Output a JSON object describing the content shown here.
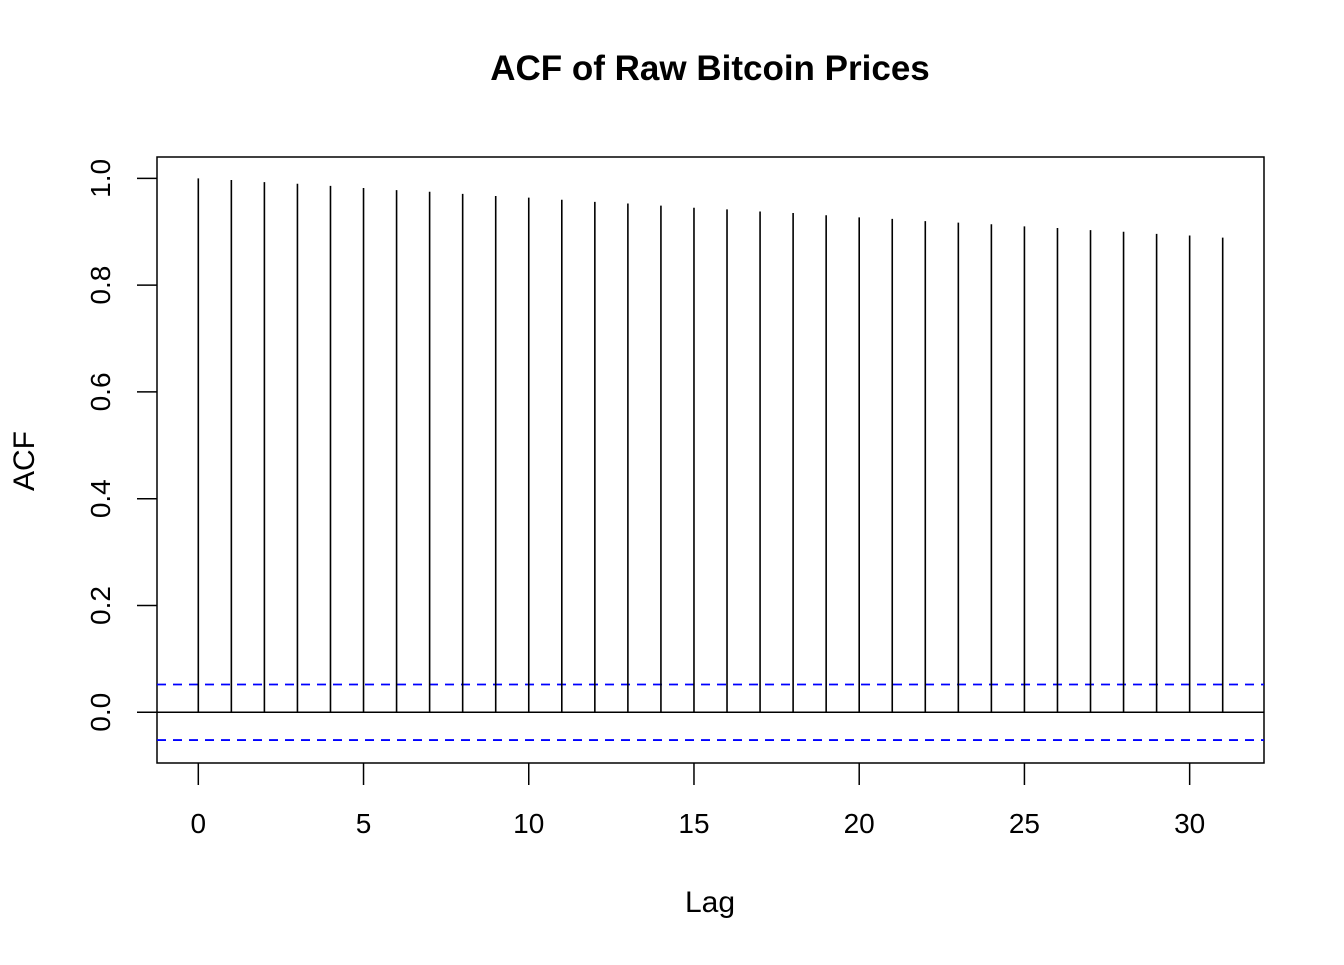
{
  "chart_data": {
    "type": "bar",
    "title": "ACF of Raw Bitcoin Prices",
    "xlabel": "Lag",
    "ylabel": "ACF",
    "xlim": [
      -1.25,
      32.25
    ],
    "ylim": [
      -0.095,
      1.04
    ],
    "x_ticks": [
      0,
      5,
      10,
      15,
      20,
      25,
      30
    ],
    "y_ticks": [
      0.0,
      0.2,
      0.4,
      0.6,
      0.8,
      1.0
    ],
    "x_tick_labels": [
      "0",
      "5",
      "10",
      "15",
      "20",
      "25",
      "30"
    ],
    "y_tick_labels": [
      "0.0",
      "0.2",
      "0.4",
      "0.6",
      "0.8",
      "1.0"
    ],
    "lags": [
      0,
      1,
      2,
      3,
      4,
      5,
      6,
      7,
      8,
      9,
      10,
      11,
      12,
      13,
      14,
      15,
      16,
      17,
      18,
      19,
      20,
      21,
      22,
      23,
      24,
      25,
      26,
      27,
      28,
      29,
      30,
      31
    ],
    "values": [
      1.0,
      0.997,
      0.993,
      0.99,
      0.986,
      0.982,
      0.978,
      0.975,
      0.971,
      0.967,
      0.964,
      0.96,
      0.956,
      0.953,
      0.949,
      0.945,
      0.942,
      0.938,
      0.935,
      0.931,
      0.927,
      0.924,
      0.92,
      0.917,
      0.914,
      0.91,
      0.907,
      0.903,
      0.9,
      0.896,
      0.893,
      0.889
    ],
    "confidence_bound": 0.052,
    "confidence_color": "#0000ff",
    "line_color": "#000000",
    "grid": false
  }
}
